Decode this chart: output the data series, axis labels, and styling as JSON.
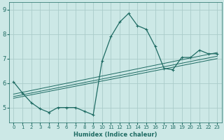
{
  "xlabel": "Humidex (Indice chaleur)",
  "bg_color": "#cce8e6",
  "grid_color": "#aaccca",
  "line_color": "#1e6b63",
  "xlim": [
    -0.5,
    23.5
  ],
  "ylim": [
    4.4,
    9.3
  ],
  "yticks": [
    5,
    6,
    7,
    8,
    9
  ],
  "xticks": [
    0,
    1,
    2,
    3,
    4,
    5,
    6,
    7,
    8,
    9,
    10,
    11,
    12,
    13,
    14,
    15,
    16,
    17,
    18,
    19,
    20,
    21,
    22,
    23
  ],
  "series": [
    {
      "x": [
        0,
        1,
        2,
        3,
        4,
        5,
        6,
        7,
        8,
        9,
        10,
        11,
        12,
        13,
        14,
        15,
        16,
        17,
        18,
        19,
        20,
        21,
        22,
        23
      ],
      "y": [
        6.05,
        5.6,
        5.2,
        4.95,
        4.8,
        5.0,
        5.0,
        5.0,
        4.85,
        4.7,
        6.9,
        7.9,
        8.5,
        8.85,
        8.35,
        8.2,
        7.5,
        6.6,
        6.55,
        7.05,
        7.05,
        7.35,
        7.2,
        7.2
      ],
      "marker": true
    },
    {
      "x": [
        0,
        23
      ],
      "y": [
        5.55,
        7.25
      ],
      "marker": false
    },
    {
      "x": [
        0,
        23
      ],
      "y": [
        5.45,
        7.1
      ],
      "marker": false
    },
    {
      "x": [
        0,
        23
      ],
      "y": [
        5.38,
        7.0
      ],
      "marker": false
    }
  ]
}
